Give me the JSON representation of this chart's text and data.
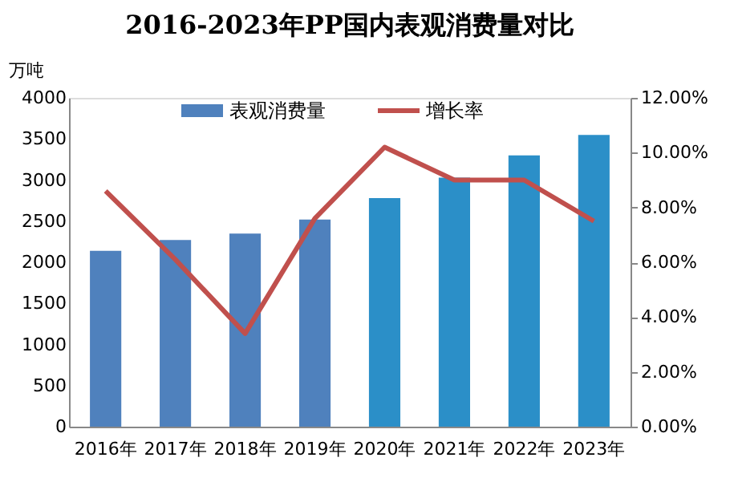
{
  "chart_data": {
    "type": "bar",
    "title": "2016-2023年PP国内表观消费量对比",
    "ylabel": "万吨",
    "categories": [
      "2016年",
      "2017年",
      "2018年",
      "2019年",
      "2020年",
      "2021年",
      "2022年",
      "2023年"
    ],
    "series": [
      {
        "name": "表观消费量",
        "color": "#4f81bd",
        "colors": [
          "#4f81bd",
          "#4f81bd",
          "#4f81bd",
          "#4f81bd",
          "#2b8fc8",
          "#2b8fc8",
          "#2b8fc8",
          "#2b8fc8"
        ],
        "values": [
          2140,
          2270,
          2350,
          2520,
          2780,
          3030,
          3300,
          3550
        ]
      },
      {
        "name": "增长率",
        "type": "line",
        "axis": "y2",
        "color": "#c0504d",
        "values": [
          8.6,
          6.1,
          3.4,
          7.6,
          10.2,
          9.0,
          9.0,
          7.5
        ]
      }
    ],
    "ylim": [
      0,
      4000
    ],
    "yticks": [
      0,
      500,
      1000,
      1500,
      2000,
      2500,
      3000,
      3500,
      4000
    ],
    "y2lim": [
      0,
      12
    ],
    "y2ticks": [
      {
        "value": 0,
        "label": "0.00%"
      },
      {
        "value": 2,
        "label": "2.00%"
      },
      {
        "value": 4,
        "label": "4.00%"
      },
      {
        "value": 6,
        "label": "6.00%"
      },
      {
        "value": 8,
        "label": "8.00%"
      },
      {
        "value": 10,
        "label": "10.00%"
      },
      {
        "value": 12,
        "label": "12.00%"
      }
    ],
    "legend": "top",
    "grid": false,
    "marker": "none",
    "line_style": "solid"
  }
}
